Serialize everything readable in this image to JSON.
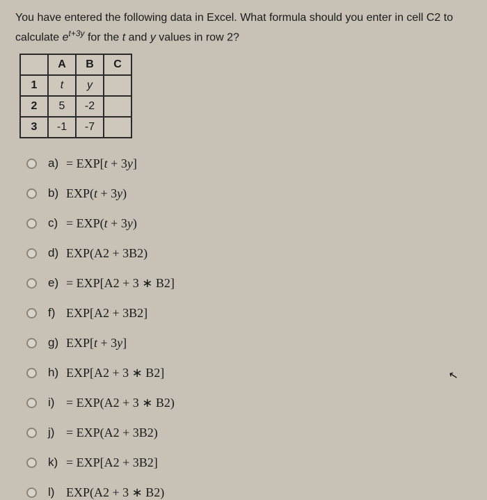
{
  "question": {
    "line1_pre": "You have entered the following data in Excel. What formula should you enter in cell C2 to",
    "line2_pre": "calculate ",
    "exp_base": "e",
    "exp_sup": "t+3y",
    "line2_mid": " for the ",
    "var_t": "t",
    "line2_and": " and ",
    "var_y": "y",
    "line2_post": " values in row 2?"
  },
  "table": {
    "headers": [
      "",
      "A",
      "B",
      "C"
    ],
    "rows": [
      {
        "rownum": "1",
        "cells": [
          "t",
          "y",
          ""
        ]
      },
      {
        "rownum": "2",
        "cells": [
          "5",
          "-2",
          ""
        ]
      },
      {
        "rownum": "3",
        "cells": [
          "-1",
          "-7",
          ""
        ]
      }
    ]
  },
  "options": [
    {
      "letter": "a)",
      "pre": "= EXP[",
      "mid_it": "t",
      "mid2": " + 3",
      "mid_it2": "y",
      "post": "]"
    },
    {
      "letter": "b)",
      "pre": "EXP(",
      "mid_it": "t",
      "mid2": " + 3",
      "mid_it2": "y",
      "post": ")"
    },
    {
      "letter": "c)",
      "pre": "= EXP(",
      "mid_it": "t",
      "mid2": " + 3",
      "mid_it2": "y",
      "post": ")"
    },
    {
      "letter": "d)",
      "pre": "EXP(A2 + 3B2)",
      "mid_it": "",
      "mid2": "",
      "mid_it2": "",
      "post": ""
    },
    {
      "letter": "e)",
      "pre": "= EXP[A2 + 3 ∗ B2]",
      "mid_it": "",
      "mid2": "",
      "mid_it2": "",
      "post": ""
    },
    {
      "letter": "f)",
      "pre": "EXP[A2 + 3B2]",
      "mid_it": "",
      "mid2": "",
      "mid_it2": "",
      "post": ""
    },
    {
      "letter": "g)",
      "pre": "EXP[",
      "mid_it": "t",
      "mid2": " + 3",
      "mid_it2": "y",
      "post": "]"
    },
    {
      "letter": "h)",
      "pre": "EXP[A2 + 3 ∗ B2]",
      "mid_it": "",
      "mid2": "",
      "mid_it2": "",
      "post": ""
    },
    {
      "letter": "i)",
      "pre": "= EXP(A2 + 3 ∗ B2)",
      "mid_it": "",
      "mid2": "",
      "mid_it2": "",
      "post": ""
    },
    {
      "letter": "j)",
      "pre": "= EXP(A2 + 3B2)",
      "mid_it": "",
      "mid2": "",
      "mid_it2": "",
      "post": ""
    },
    {
      "letter": "k)",
      "pre": "= EXP[A2 + 3B2]",
      "mid_it": "",
      "mid2": "",
      "mid_it2": "",
      "post": ""
    },
    {
      "letter": "l)",
      "pre": "EXP(A2 + 3 ∗ B2)",
      "mid_it": "",
      "mid2": "",
      "mid_it2": "",
      "post": ""
    }
  ],
  "colors": {
    "background": "#c8c2b6",
    "text": "#1a1a1a",
    "border": "#2a2a2a",
    "radio_border": "#8a8578"
  }
}
